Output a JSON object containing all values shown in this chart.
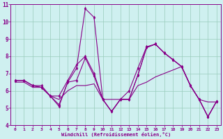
{
  "xlabel": "Windchill (Refroidissement éolien,°C)",
  "background_color": "#cff0f0",
  "grid_color": "#99ccbb",
  "line_color": "#880088",
  "xlim": [
    -0.5,
    23.5
  ],
  "ylim": [
    4,
    11
  ],
  "yticks": [
    4,
    5,
    6,
    7,
    8,
    9,
    10,
    11
  ],
  "xticks": [
    0,
    1,
    2,
    3,
    4,
    5,
    6,
    7,
    8,
    9,
    10,
    11,
    12,
    13,
    14,
    15,
    16,
    17,
    18,
    19,
    20,
    21,
    22,
    23
  ],
  "series1_x": [
    0,
    1,
    2,
    3,
    4,
    5,
    6,
    7,
    8,
    9,
    10,
    11,
    12,
    13,
    14,
    15,
    16,
    17,
    18,
    19,
    20,
    21,
    22,
    23
  ],
  "series1_y": [
    6.6,
    6.6,
    6.3,
    6.3,
    5.7,
    5.7,
    6.6,
    7.5,
    8.0,
    7.0,
    5.5,
    4.8,
    5.5,
    6.0,
    7.3,
    8.55,
    8.7,
    8.2,
    7.8,
    7.4,
    6.3,
    5.5,
    4.5,
    5.4
  ],
  "series2_x": [
    0,
    1,
    2,
    3,
    4,
    5,
    6,
    7,
    8,
    9,
    10,
    11,
    12,
    13,
    14,
    15,
    16,
    17,
    18,
    19,
    20,
    21,
    22,
    23
  ],
  "series2_y": [
    6.6,
    6.6,
    6.3,
    6.2,
    5.7,
    5.2,
    6.5,
    7.3,
    10.75,
    10.25,
    5.5,
    4.8,
    5.5,
    5.5,
    6.9,
    8.5,
    8.7,
    8.2,
    7.8,
    7.4,
    6.3,
    5.5,
    4.5,
    5.4
  ],
  "series3_x": [
    0,
    1,
    2,
    3,
    4,
    5,
    6,
    7,
    8,
    9,
    10,
    11,
    12,
    13,
    14,
    15,
    16,
    17,
    18,
    19,
    20,
    21,
    22,
    23
  ],
  "series3_y": [
    6.6,
    6.6,
    6.3,
    6.2,
    5.7,
    5.1,
    6.5,
    6.6,
    7.9,
    6.85,
    5.5,
    4.8,
    5.5,
    5.5,
    6.9,
    8.5,
    8.7,
    8.2,
    7.8,
    7.4,
    6.3,
    5.5,
    4.5,
    5.4
  ],
  "series4_x": [
    0,
    1,
    2,
    3,
    4,
    5,
    6,
    7,
    8,
    9,
    10,
    11,
    12,
    13,
    14,
    15,
    16,
    17,
    18,
    19,
    20,
    21,
    22,
    23
  ],
  "series4_y": [
    6.5,
    6.5,
    6.2,
    6.2,
    5.7,
    5.5,
    6.0,
    6.3,
    6.3,
    6.4,
    5.5,
    5.5,
    5.5,
    5.5,
    6.3,
    6.5,
    6.8,
    7.0,
    7.2,
    7.4,
    6.3,
    5.5,
    5.35,
    5.35
  ]
}
